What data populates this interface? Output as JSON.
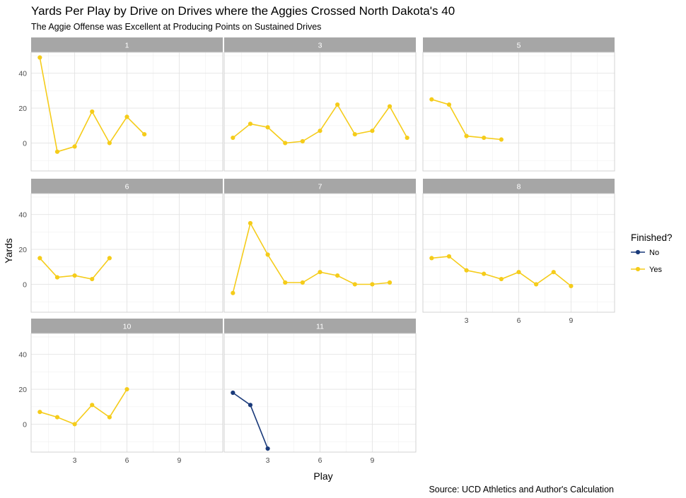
{
  "chart_data": {
    "type": "line",
    "title": "Yards Per Play by Drive on Drives where the Aggies Crossed North Dakota's 40",
    "subtitle": "The Aggie Offense was Excellent at Producing Points on Sustained Drives",
    "caption": "Source: UCD Athletics and Author's Calculation",
    "xlabel": "Play",
    "ylabel": "Yards",
    "xlim": [
      0.5,
      11.5
    ],
    "ylim": [
      -16,
      52
    ],
    "x_ticks": [
      3,
      6,
      9
    ],
    "y_ticks": [
      0,
      20,
      40
    ],
    "grid": true,
    "legend": {
      "title": "Finished?",
      "placement": "right",
      "entries": [
        {
          "label": "No",
          "color": "#1a3a7a"
        },
        {
          "label": "Yes",
          "color": "#f5cc1a"
        }
      ]
    },
    "panels": [
      {
        "label": "1",
        "finished": "Yes",
        "x": [
          1,
          2,
          3,
          4,
          5,
          6,
          7
        ],
        "y": [
          49,
          -5,
          -2,
          18,
          0,
          15,
          5
        ]
      },
      {
        "label": "3",
        "finished": "Yes",
        "x": [
          1,
          2,
          3,
          4,
          5,
          6,
          7,
          8,
          9,
          10,
          11
        ],
        "y": [
          3,
          11,
          9,
          0,
          1,
          7,
          22,
          5,
          7,
          21,
          3
        ]
      },
      {
        "label": "5",
        "finished": "Yes",
        "x": [
          1,
          2,
          3,
          4,
          5
        ],
        "y": [
          25,
          22,
          4,
          3,
          2
        ]
      },
      {
        "label": "6",
        "finished": "Yes",
        "x": [
          1,
          2,
          3,
          4,
          5
        ],
        "y": [
          15,
          4,
          5,
          3,
          15
        ]
      },
      {
        "label": "7",
        "finished": "Yes",
        "x": [
          1,
          2,
          3,
          4,
          5,
          6,
          7,
          8,
          9,
          10
        ],
        "y": [
          -5,
          35,
          17,
          1,
          1,
          7,
          5,
          0,
          0,
          1
        ]
      },
      {
        "label": "8",
        "finished": "Yes",
        "x": [
          1,
          2,
          3,
          4,
          5,
          6,
          7,
          8,
          9
        ],
        "y": [
          15,
          16,
          8,
          6,
          3,
          7,
          0,
          7,
          -1
        ]
      },
      {
        "label": "10",
        "finished": "Yes",
        "x": [
          1,
          2,
          3,
          4,
          5,
          6
        ],
        "y": [
          7,
          4,
          0,
          11,
          4,
          20
        ]
      },
      {
        "label": "11",
        "finished": "No",
        "x": [
          1,
          2,
          3
        ],
        "y": [
          18,
          11,
          -14
        ]
      }
    ]
  }
}
